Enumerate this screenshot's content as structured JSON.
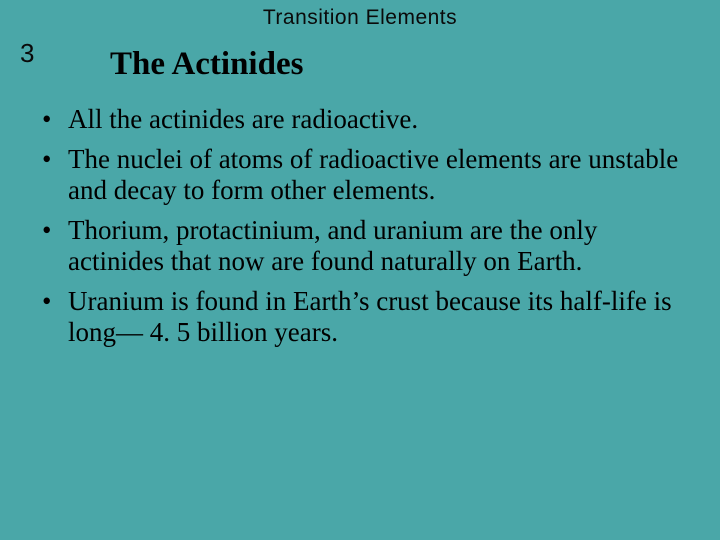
{
  "background_color": "#4aa7a8",
  "text_color": "#000000",
  "header": {
    "text": "Transition Elements",
    "font_family": "Century Gothic",
    "font_size_pt": 16
  },
  "section_number": {
    "text": "3",
    "font_family": "Century Gothic",
    "font_size_pt": 20
  },
  "title": {
    "text": "The Actinides",
    "font_family": "Times New Roman",
    "font_size_pt": 25,
    "font_weight": "bold"
  },
  "bullets": {
    "font_family": "Times New Roman",
    "font_size_pt": 20,
    "items": [
      "All the actinides are radioactive.",
      "The nuclei of atoms of radioactive elements are unstable and decay to form other elements.",
      "Thorium, protactinium, and uranium are the only actinides that now are found naturally on Earth.",
      "Uranium is found in Earth’s crust because its half-life is long— 4. 5 billion years."
    ]
  }
}
